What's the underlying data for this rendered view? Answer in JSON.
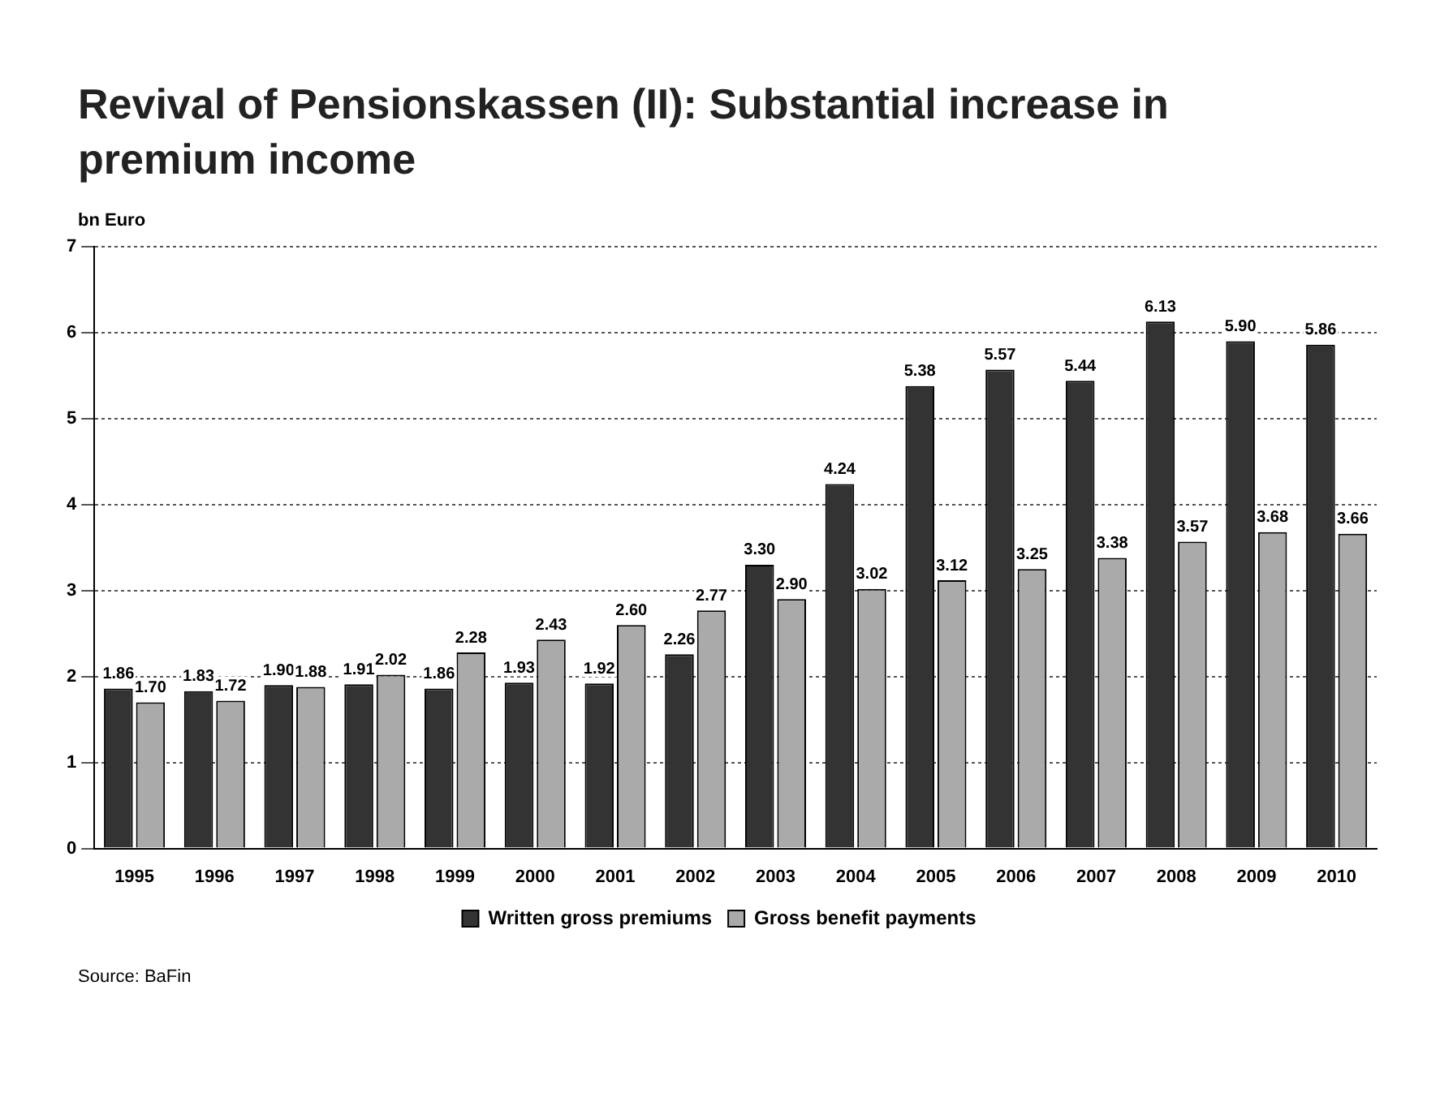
{
  "chart_data": {
    "type": "bar",
    "title": "Revival of Pensionskassen (II): Substantial increase in premium income",
    "ylabel": "bn Euro",
    "categories": [
      "1995",
      "1996",
      "1997",
      "1998",
      "1999",
      "2000",
      "2001",
      "2002",
      "2003",
      "2004",
      "2005",
      "2006",
      "2007",
      "2008",
      "2009",
      "2010"
    ],
    "series": [
      {
        "name": "Written gross premiums",
        "color": "#333333",
        "values": [
          1.86,
          1.83,
          1.9,
          1.91,
          1.86,
          1.93,
          1.92,
          2.26,
          3.3,
          4.24,
          5.38,
          5.57,
          5.44,
          6.13,
          5.9,
          5.86
        ],
        "value_labels": [
          "1.86",
          "1.83",
          "1.90",
          "1.91",
          "1.86",
          "1.93",
          "1.92",
          "2.26",
          "3.30",
          "4.24",
          "5.38",
          "5.57",
          "5.44",
          "6.13",
          "5.90",
          "5.86"
        ]
      },
      {
        "name": "Gross benefit payments",
        "color": "#aaaaaa",
        "values": [
          1.7,
          1.72,
          1.88,
          2.02,
          2.28,
          2.43,
          2.6,
          2.77,
          2.9,
          3.02,
          3.12,
          3.25,
          3.38,
          3.57,
          3.68,
          3.66
        ],
        "value_labels": [
          "1.70",
          "1.72",
          "1.88",
          "2.02",
          "2.28",
          "2.43",
          "2.60",
          "2.77",
          "2.90",
          "3.02",
          "3.12",
          "3.25",
          "3.38",
          "3.57",
          "3.68",
          "3.66"
        ]
      }
    ],
    "ylim": [
      0,
      7
    ],
    "yticks": [
      0,
      1,
      2,
      3,
      4,
      5,
      6,
      7
    ],
    "grid": "y",
    "legend": "bottom",
    "annotations": [
      "Source: BaFin"
    ]
  }
}
